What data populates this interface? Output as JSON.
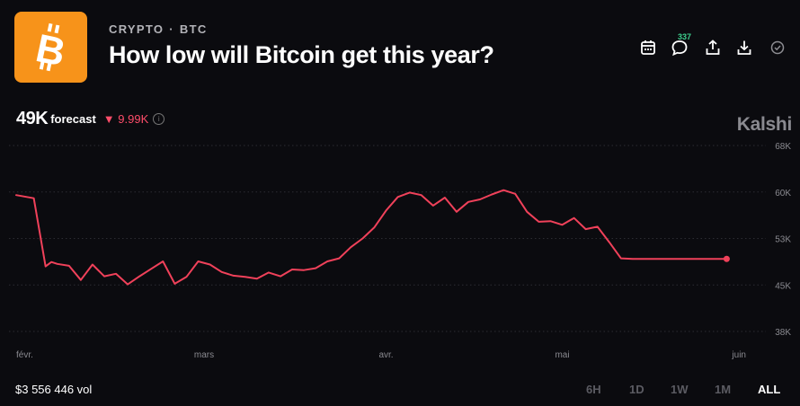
{
  "header": {
    "category": "CRYPTO",
    "separator": "·",
    "subcategory": "BTC",
    "title": "How low will Bitcoin get this year?",
    "logo_icon": "bitcoin-logo",
    "logo_color": "#f7931a",
    "comment_count": "337",
    "actions": [
      "calendar-icon",
      "comment-icon",
      "share-icon",
      "download-icon",
      "check-icon"
    ]
  },
  "summary": {
    "value": "49K",
    "label": "forecast",
    "change_arrow": "▼",
    "change": "9.99K",
    "change_color": "#ff4d6a",
    "info_icon": "info-icon"
  },
  "brand": "Kalshi",
  "footer": {
    "volume": "$3 556 446 vol",
    "ranges": [
      "6H",
      "1D",
      "1W",
      "1M",
      "ALL"
    ],
    "active_range": "ALL"
  },
  "chart_data": {
    "type": "line",
    "line_color": "#f0415a",
    "x_tick_labels": [
      "févr.",
      "mars",
      "avr.",
      "mai",
      "juin"
    ],
    "y_tick_labels": [
      "68K",
      "60K",
      "53K",
      "45K",
      "38K"
    ],
    "ylim": [
      38000,
      68000
    ],
    "grid": true,
    "series": [
      {
        "x": [
          "01-28",
          "01-31",
          "02-02",
          "02-03",
          "02-04",
          "02-06",
          "02-08",
          "02-10",
          "02-12",
          "02-14",
          "02-16",
          "02-18",
          "02-20",
          "02-22",
          "02-24",
          "02-26",
          "02-28",
          "03-02",
          "03-04",
          "03-06",
          "03-08",
          "03-10",
          "03-12",
          "03-14",
          "03-16",
          "03-18",
          "03-20",
          "03-22",
          "03-24",
          "03-26",
          "03-28",
          "03-30",
          "04-01",
          "04-03",
          "04-05",
          "04-07",
          "04-09",
          "04-11",
          "04-13",
          "04-15",
          "04-17",
          "04-19",
          "04-21",
          "04-23",
          "04-25",
          "04-27",
          "04-29",
          "05-01",
          "05-03",
          "05-05",
          "05-07",
          "05-09",
          "05-11",
          "05-13",
          "05-15",
          "05-17",
          "05-19",
          "05-21",
          "05-23",
          "05-25",
          "05-27",
          "05-29"
        ],
        "y": [
          60000,
          59500,
          48500,
          49200,
          48900,
          48600,
          46300,
          48800,
          46900,
          47300,
          45600,
          46900,
          48100,
          49300,
          45700,
          46800,
          49300,
          48800,
          47600,
          47000,
          46800,
          46500,
          47500,
          46900,
          48000,
          47900,
          48200,
          49300,
          49800,
          51600,
          53000,
          54800,
          57500,
          59700,
          60400,
          60000,
          58300,
          59600,
          57300,
          58900,
          59300,
          60100,
          60800,
          60200,
          57300,
          55700,
          55800,
          55200,
          56300,
          54500,
          54900,
          52400,
          49800,
          49700,
          49700,
          49700,
          49700,
          49700,
          49700,
          49700,
          49700,
          49700
        ]
      }
    ]
  }
}
